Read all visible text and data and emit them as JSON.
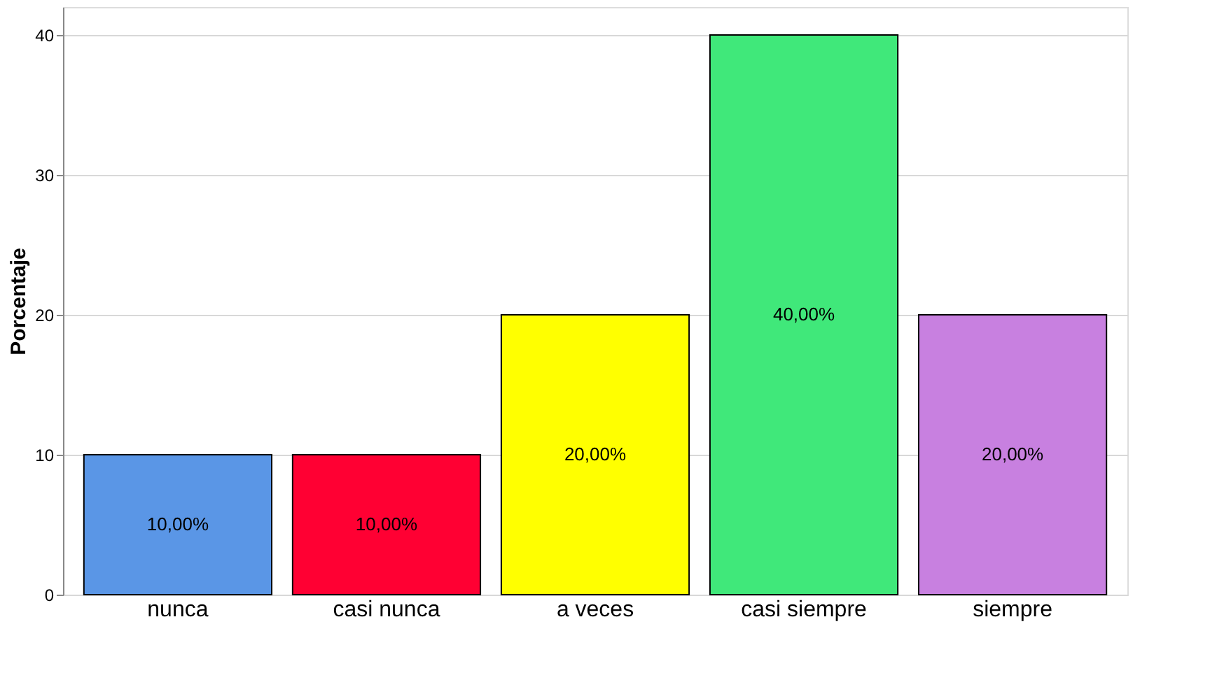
{
  "chart_data": {
    "type": "bar",
    "ylabel": "Porcentaje",
    "categories": [
      "nunca",
      "casi nunca",
      "a veces",
      "casi siempre",
      "siempre"
    ],
    "values": [
      10,
      10,
      20,
      40,
      20
    ],
    "colors": [
      "#5a96e6",
      "#ff0033",
      "#ffff00",
      "#40e87a",
      "#c880e0"
    ],
    "value_labels": [
      "10,00%",
      "10,00%",
      "20,00%",
      "40,00%",
      "20,00%"
    ],
    "ylim": [
      0,
      42
    ],
    "yticks": [
      0,
      10,
      20,
      30,
      40
    ],
    "grid": "y"
  }
}
